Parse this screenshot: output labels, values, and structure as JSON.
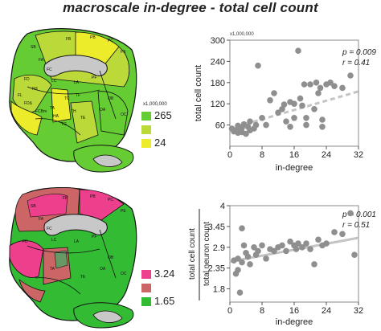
{
  "figure": {
    "title": "macroscale in-degree - total cell count"
  },
  "legend_top": {
    "unit": "x1,000,000",
    "items": [
      {
        "label": "265",
        "color": "#66cc33"
      },
      {
        "label": "",
        "color": "#bcd93a"
      },
      {
        "label": "24",
        "color": "#ecec2a"
      }
    ]
  },
  "legend_bottom": {
    "items": [
      {
        "label": "3.24",
        "color": "#ee3f8c"
      },
      {
        "label": "",
        "color": "#cc6666"
      },
      {
        "label": "1.65",
        "color": "#33bb33"
      }
    ]
  },
  "brain_labels_top": [
    "FB",
    "PB",
    "PC",
    "SB",
    "PE",
    "FC",
    "FA",
    "FD",
    "FH",
    "FL",
    "FDΔ",
    "PF",
    "TA",
    "TE",
    "OA",
    "OB",
    "OC",
    "TC",
    "TF",
    "FCBm",
    "TG",
    "TH",
    "HA",
    "LC",
    "LA"
  ],
  "brain_labels_bottom": [
    "FB",
    "PB",
    "PC",
    "SB",
    "PE",
    "FC",
    "FA",
    "FD",
    "PF",
    "TA",
    "TE",
    "OA",
    "OB",
    "OC",
    "LC",
    "LA"
  ],
  "chart_data": [
    {
      "type": "scatter",
      "title": "",
      "xlabel": "in-degree",
      "ylabel": "total cell count",
      "y_unit": "x1,000,000",
      "xlim": [
        0,
        32
      ],
      "ylim": [
        0,
        300
      ],
      "xticks": [
        0,
        8,
        16,
        24,
        32
      ],
      "yticks": [
        60,
        120,
        180,
        240,
        300
      ],
      "x_tick_labels": [
        "0",
        "8",
        "16",
        "24",
        "32"
      ],
      "y_tick_labels": [
        "60",
        "120",
        "180",
        "240",
        "300"
      ],
      "annotation": [
        "p = 0.009",
        "r = 0.41"
      ],
      "grid": false,
      "trend_line": {
        "style": "dashed",
        "from": [
          0,
          50
        ],
        "to": [
          32,
          155
        ]
      },
      "points": [
        [
          0.5,
          50
        ],
        [
          1,
          42
        ],
        [
          1.5,
          45
        ],
        [
          2,
          38
        ],
        [
          2,
          58
        ],
        [
          2.5,
          48
        ],
        [
          3,
          40
        ],
        [
          3,
          52
        ],
        [
          3.5,
          62
        ],
        [
          4,
          35
        ],
        [
          4.5,
          55
        ],
        [
          5,
          70
        ],
        [
          5,
          45
        ],
        [
          6,
          50
        ],
        [
          6.5,
          60
        ],
        [
          7,
          228
        ],
        [
          8,
          80
        ],
        [
          9,
          60
        ],
        [
          10,
          130
        ],
        [
          11,
          150
        ],
        [
          12,
          95
        ],
        [
          13,
          105
        ],
        [
          13.5,
          118
        ],
        [
          14,
          70
        ],
        [
          15,
          55
        ],
        [
          15,
          125
        ],
        [
          16,
          120
        ],
        [
          16,
          80
        ],
        [
          17,
          270
        ],
        [
          17.5,
          135
        ],
        [
          18,
          115
        ],
        [
          18.5,
          175
        ],
        [
          19,
          60
        ],
        [
          19,
          80
        ],
        [
          20,
          175
        ],
        [
          21,
          105
        ],
        [
          21.5,
          180
        ],
        [
          22,
          150
        ],
        [
          22.5,
          165
        ],
        [
          23,
          55
        ],
        [
          23,
          75
        ],
        [
          24,
          175
        ],
        [
          25,
          180
        ],
        [
          26,
          170
        ],
        [
          28,
          165
        ],
        [
          30,
          200
        ]
      ]
    },
    {
      "type": "scatter",
      "title": "",
      "xlabel": "in-degree",
      "ylabel": "total cell count / total neuron count",
      "ylabel_numerator": "total cell count",
      "ylabel_denominator": "total neuron count",
      "xlim": [
        0,
        32
      ],
      "ylim": [
        1.45,
        4
      ],
      "xticks": [
        0,
        8,
        16,
        24,
        32
      ],
      "yticks": [
        1.8,
        2.35,
        2.9,
        3.45,
        4
      ],
      "x_tick_labels": [
        "0",
        "8",
        "16",
        "24",
        "32"
      ],
      "y_tick_labels": [
        "1.8",
        "2.35",
        "2.9",
        "3.45",
        "4"
      ],
      "annotation": [
        "p = 0.001",
        "r = 0.51"
      ],
      "grid": false,
      "trend_line": {
        "style": "solid",
        "from": [
          0,
          2.52
        ],
        "to": [
          32,
          3.15
        ]
      },
      "points": [
        [
          1,
          2.55
        ],
        [
          1.5,
          2.2
        ],
        [
          2,
          2.6
        ],
        [
          2,
          2.3
        ],
        [
          2.5,
          1.7
        ],
        [
          3,
          2.5
        ],
        [
          3,
          3.4
        ],
        [
          3.5,
          2.95
        ],
        [
          4,
          2.75
        ],
        [
          4.5,
          2.65
        ],
        [
          5,
          2.45
        ],
        [
          6,
          2.9
        ],
        [
          6.5,
          2.7
        ],
        [
          7,
          2.8
        ],
        [
          8,
          2.95
        ],
        [
          9,
          2.6
        ],
        [
          10,
          2.85
        ],
        [
          11,
          2.8
        ],
        [
          12,
          2.9
        ],
        [
          13,
          2.95
        ],
        [
          14,
          2.8
        ],
        [
          15,
          3.05
        ],
        [
          16,
          2.95
        ],
        [
          16.5,
          2.85
        ],
        [
          17,
          3.0
        ],
        [
          18,
          2.9
        ],
        [
          19,
          3.0
        ],
        [
          20,
          2.85
        ],
        [
          21,
          2.45
        ],
        [
          22,
          3.1
        ],
        [
          23,
          2.95
        ],
        [
          24,
          3.0
        ],
        [
          26,
          3.3
        ],
        [
          28,
          3.25
        ],
        [
          30,
          3.8
        ],
        [
          31,
          2.7
        ]
      ]
    }
  ]
}
